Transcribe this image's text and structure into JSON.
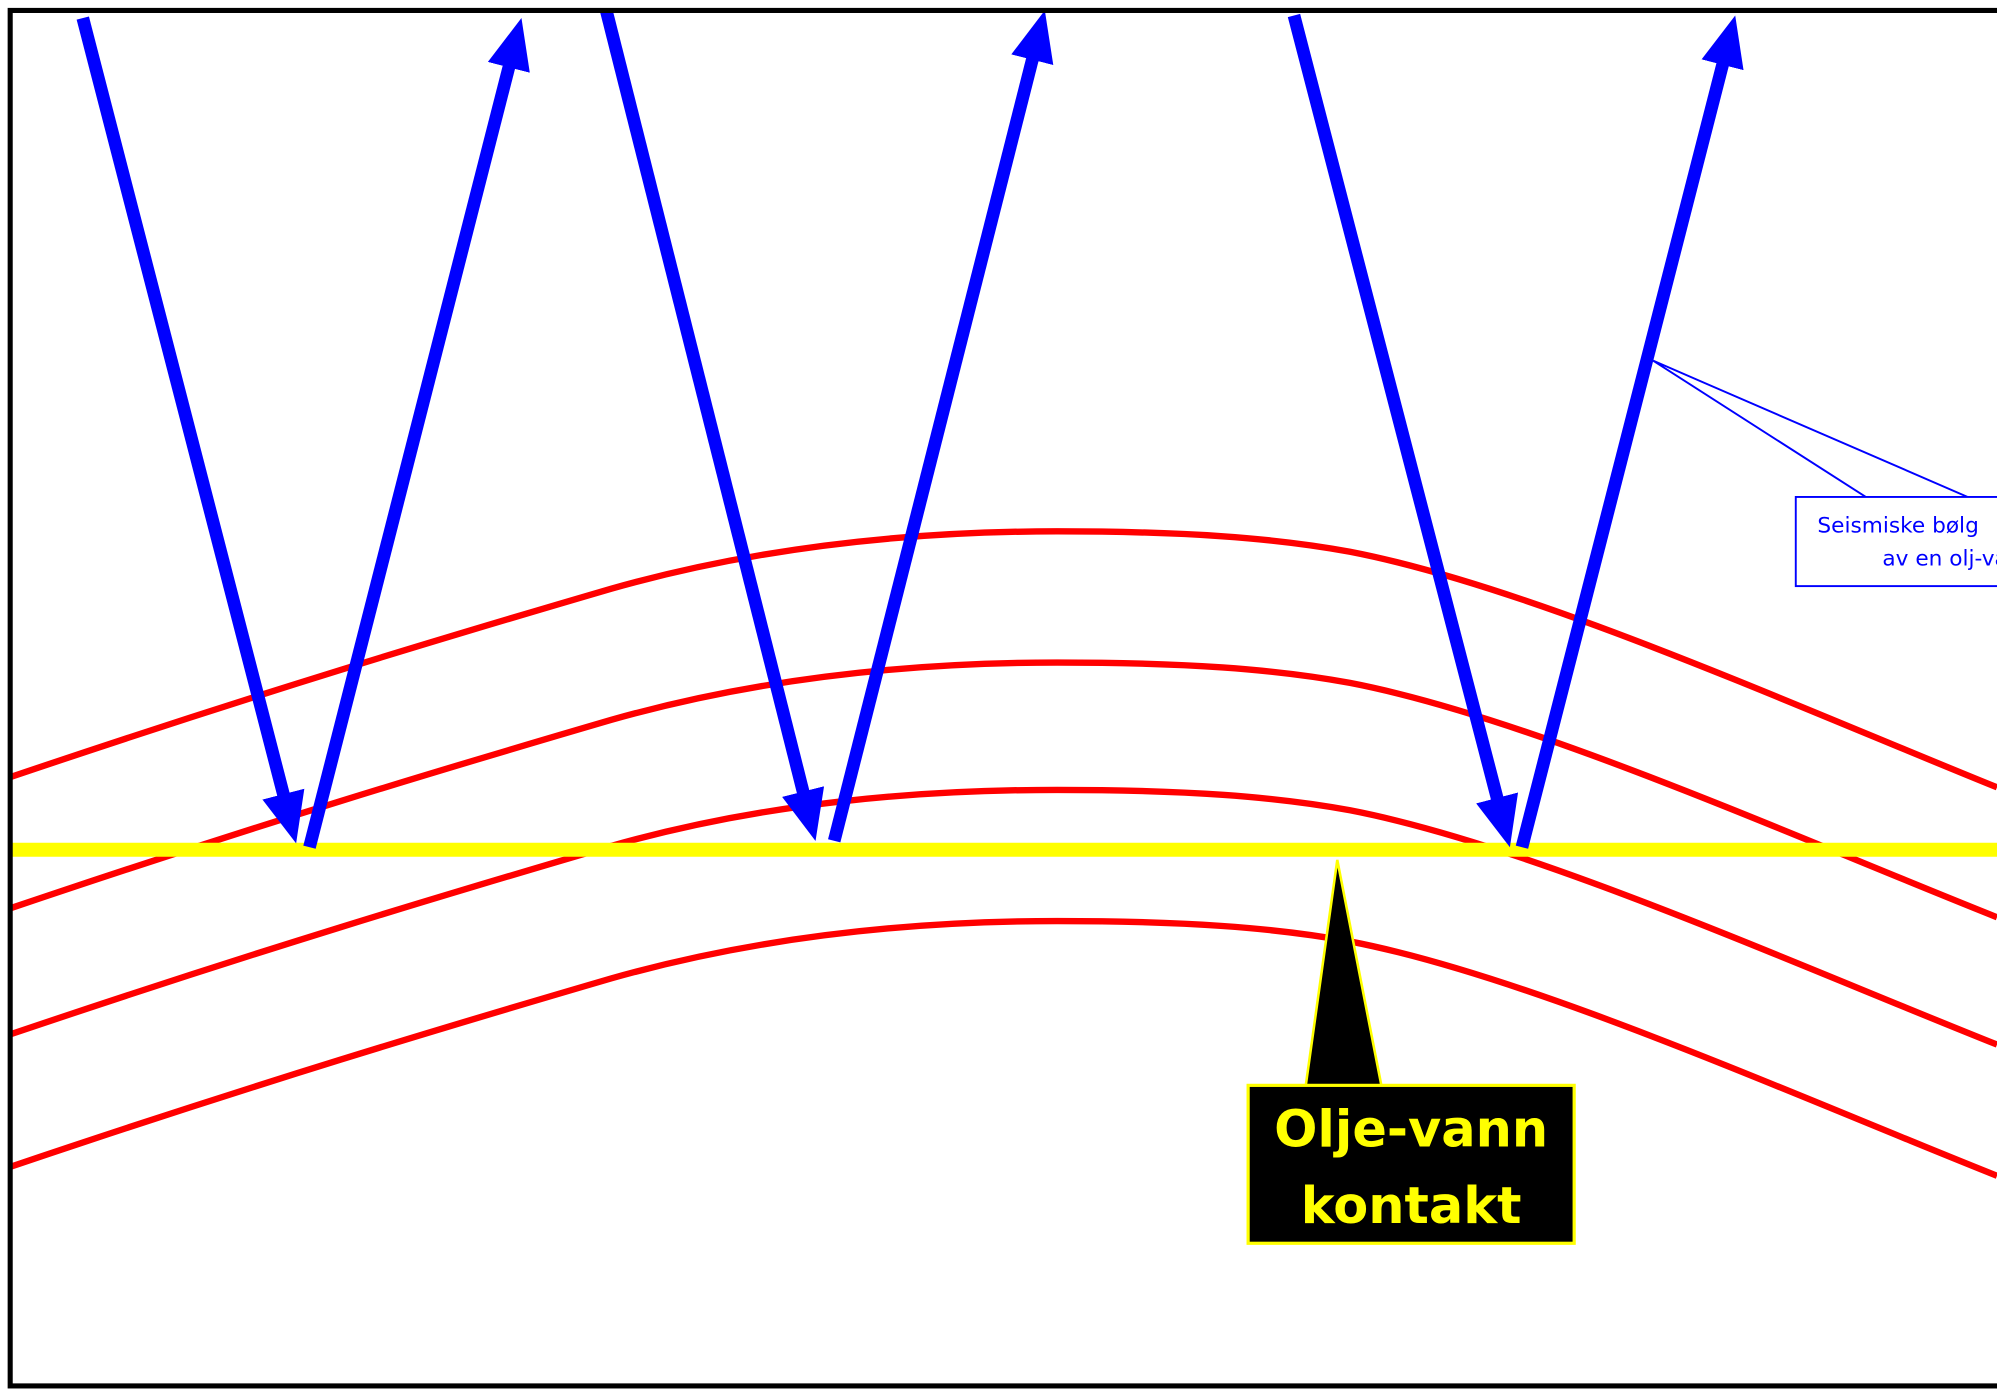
{
  "callout": {
    "lines": [
      "Seismiske bølg",
      "av en olj-va"
    ]
  },
  "label": {
    "lines": [
      "Olje-vann",
      "kontakt"
    ]
  }
}
